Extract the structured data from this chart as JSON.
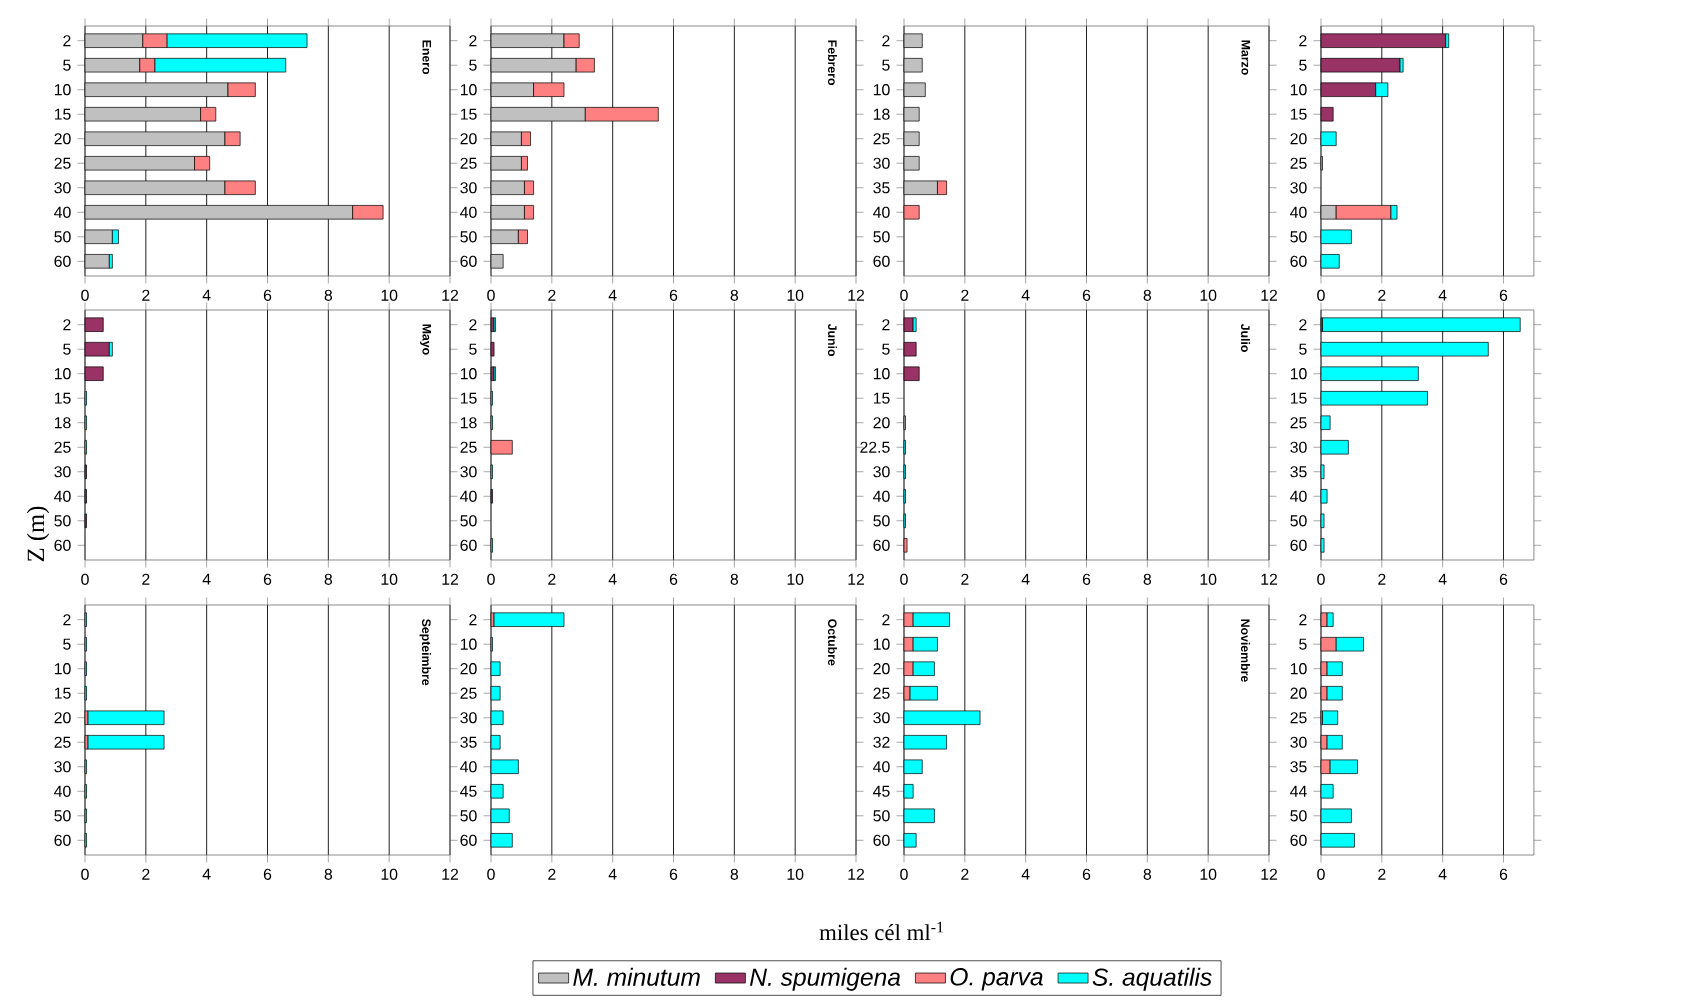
{
  "chart_data": [
    {
      "type": "bar",
      "orientation": "horizontal",
      "stacked": true,
      "title": "Enero",
      "grid": "x",
      "xlim": [
        0,
        12
      ],
      "xticks": [
        0,
        2,
        4,
        6,
        8,
        10,
        12
      ],
      "categories": [
        "2",
        "5",
        "10",
        "15",
        "20",
        "25",
        "30",
        "40",
        "50",
        "60"
      ],
      "series": [
        {
          "color": "#c0c0c0",
          "values": [
            1.9,
            1.8,
            4.7,
            3.8,
            4.6,
            3.6,
            4.6,
            8.8,
            0.9,
            0.8
          ]
        },
        {
          "color": "#ff8080",
          "values": [
            0.8,
            0.5,
            0.9,
            0.5,
            0.5,
            0.5,
            1.0,
            1.0,
            null,
            null
          ]
        },
        {
          "color": "#00ffff",
          "values": [
            4.6,
            4.3,
            null,
            null,
            null,
            null,
            null,
            null,
            0.2,
            0.1
          ]
        }
      ]
    },
    {
      "type": "bar",
      "orientation": "horizontal",
      "stacked": true,
      "title": "Febrero",
      "grid": "x",
      "xlim": [
        0,
        12
      ],
      "xticks": [
        0,
        2,
        4,
        6,
        8,
        10,
        12
      ],
      "categories": [
        "2",
        "5",
        "10",
        "15",
        "20",
        "25",
        "30",
        "40",
        "50",
        "60"
      ],
      "series": [
        {
          "color": "#c0c0c0",
          "values": [
            2.4,
            2.8,
            1.4,
            3.1,
            1.0,
            1.0,
            1.1,
            1.1,
            0.9,
            0.4
          ]
        },
        {
          "color": "#ff8080",
          "values": [
            0.5,
            0.6,
            1.0,
            2.4,
            0.3,
            0.2,
            0.3,
            0.3,
            0.3,
            null
          ]
        }
      ]
    },
    {
      "type": "bar",
      "orientation": "horizontal",
      "stacked": true,
      "title": "Marzo",
      "grid": "x",
      "xlim": [
        0,
        12
      ],
      "xticks": [
        0,
        2,
        4,
        6,
        8,
        10,
        12
      ],
      "categories": [
        "2",
        "5",
        "10",
        "18",
        "25",
        "30",
        "35",
        "40",
        "50",
        "60"
      ],
      "series": [
        {
          "color": "#c0c0c0",
          "values": [
            0.6,
            0.6,
            0.7,
            0.5,
            0.5,
            0.5,
            1.1,
            null,
            null,
            null
          ]
        },
        {
          "color": "#ff8080",
          "values": [
            null,
            null,
            null,
            null,
            null,
            null,
            0.3,
            0.5,
            null,
            null
          ]
        }
      ]
    },
    {
      "type": "bar",
      "orientation": "horizontal",
      "stacked": true,
      "grid": "x",
      "legend": "bottom",
      "xlim": [
        0,
        7
      ],
      "xticks": [
        0,
        2,
        4,
        6
      ],
      "categories": [
        "2",
        "5",
        "10",
        "15",
        "20",
        "25",
        "30",
        "40",
        "50",
        "60"
      ],
      "series": [
        {
          "name": "*M. minutum*",
          "color": "#c0c0c0",
          "values": [
            null,
            null,
            null,
            null,
            null,
            0.05,
            null,
            0.5,
            null,
            null
          ]
        },
        {
          "name": "*N. spumigena*",
          "color": "#993366",
          "values": [
            4.1,
            2.6,
            1.8,
            0.4,
            null,
            null,
            null,
            null,
            null,
            null
          ]
        },
        {
          "name": "*O. parva*",
          "color": "#ff8080",
          "values": [
            null,
            null,
            null,
            null,
            null,
            null,
            null,
            1.8,
            null,
            null
          ]
        },
        {
          "name": "*S. aquatilis*",
          "color": "#00ffff",
          "values": [
            0.1,
            0.1,
            0.4,
            null,
            0.5,
            null,
            null,
            0.2,
            1.0,
            0.6
          ]
        }
      ]
    },
    {
      "type": "bar",
      "orientation": "horizontal",
      "stacked": true,
      "title": "Mayo",
      "ylabel": "Z (m)",
      "grid": "x",
      "xlim": [
        0,
        12
      ],
      "xticks": [
        0,
        2,
        4,
        6,
        8,
        10,
        12
      ],
      "categories": [
        "2",
        "5",
        "10",
        "15",
        "18",
        "25",
        "30",
        "40",
        "50",
        "60"
      ],
      "series": [
        {
          "color": "#993366",
          "values": [
            0.6,
            0.8,
            0.6,
            null,
            null,
            null,
            0.05,
            0.05,
            0.05,
            null
          ]
        },
        {
          "color": "#00ffff",
          "values": [
            null,
            0.1,
            null,
            0.05,
            0.05,
            0.05,
            null,
            null,
            null,
            null
          ]
        }
      ]
    },
    {
      "type": "bar",
      "orientation": "horizontal",
      "stacked": true,
      "title": "Junio",
      "grid": "x",
      "xlim": [
        0,
        12
      ],
      "xticks": [
        0,
        2,
        4,
        6,
        8,
        10,
        12
      ],
      "categories": [
        "2",
        "5",
        "10",
        "15",
        "18",
        "25",
        "30",
        "40",
        "50",
        "60"
      ],
      "series": [
        {
          "color": "#993366",
          "values": [
            0.1,
            0.1,
            0.1,
            null,
            null,
            null,
            null,
            0.05,
            null,
            null
          ]
        },
        {
          "color": "#ff8080",
          "values": [
            null,
            null,
            null,
            null,
            null,
            0.7,
            null,
            null,
            null,
            null
          ]
        },
        {
          "color": "#00ffff",
          "values": [
            0.05,
            null,
            0.05,
            0.05,
            0.05,
            null,
            0.05,
            null,
            null,
            0.05
          ]
        }
      ]
    },
    {
      "type": "bar",
      "orientation": "horizontal",
      "stacked": true,
      "title": "Julio",
      "grid": "x",
      "xlim": [
        0,
        12
      ],
      "xticks": [
        0,
        2,
        4,
        6,
        8,
        10,
        12
      ],
      "categories": [
        "2",
        "5",
        "10",
        "15",
        "20",
        "22.5",
        "30",
        "40",
        "50",
        "60"
      ],
      "series": [
        {
          "color": "#c0c0c0",
          "values": [
            null,
            null,
            null,
            null,
            0.05,
            null,
            null,
            null,
            null,
            null
          ]
        },
        {
          "color": "#993366",
          "values": [
            0.3,
            0.4,
            0.5,
            null,
            null,
            null,
            null,
            null,
            null,
            null
          ]
        },
        {
          "color": "#ff8080",
          "values": [
            null,
            null,
            null,
            null,
            null,
            null,
            null,
            null,
            null,
            0.1
          ]
        },
        {
          "color": "#00ffff",
          "values": [
            0.1,
            null,
            null,
            null,
            null,
            0.05,
            0.05,
            0.05,
            0.05,
            null
          ]
        }
      ]
    },
    {
      "type": "bar",
      "orientation": "horizontal",
      "stacked": true,
      "grid": "x",
      "xlim": [
        0,
        7
      ],
      "xticks": [
        0,
        2,
        4,
        6
      ],
      "categories": [
        "2",
        "5",
        "10",
        "15",
        "25",
        "30",
        "35",
        "40",
        "50",
        "60"
      ],
      "series": [
        {
          "color": "#993366",
          "values": [
            0.05,
            null,
            null,
            null,
            null,
            null,
            null,
            null,
            null,
            null
          ]
        },
        {
          "color": "#00ffff",
          "values": [
            6.5,
            5.5,
            3.2,
            3.5,
            0.3,
            0.9,
            0.1,
            0.2,
            0.1,
            0.1
          ]
        }
      ]
    },
    {
      "type": "bar",
      "orientation": "horizontal",
      "stacked": true,
      "title": "Septeimbre",
      "grid": "x",
      "xlim": [
        0,
        12
      ],
      "xticks": [
        0,
        2,
        4,
        6,
        8,
        10,
        12
      ],
      "categories": [
        "2",
        "5",
        "10",
        "15",
        "20",
        "25",
        "30",
        "40",
        "50",
        "60"
      ],
      "series": [
        {
          "color": "#ff8080",
          "values": [
            null,
            null,
            null,
            null,
            0.1,
            0.1,
            null,
            null,
            null,
            null
          ]
        },
        {
          "color": "#00ffff",
          "values": [
            0.05,
            0.05,
            0.05,
            0.05,
            2.5,
            2.5,
            0.05,
            0.05,
            0.05,
            0.05
          ]
        }
      ]
    },
    {
      "type": "bar",
      "orientation": "horizontal",
      "stacked": true,
      "title": "Octubre",
      "xlabel": "miles cél ml$^{-1}$",
      "grid": "x",
      "xlim": [
        0,
        12
      ],
      "xticks": [
        0,
        2,
        4,
        6,
        8,
        10,
        12
      ],
      "categories": [
        "2",
        "10",
        "20",
        "25",
        "30",
        "35",
        "40",
        "45",
        "50",
        "60"
      ],
      "series": [
        {
          "color": "#ff8080",
          "values": [
            0.1,
            null,
            null,
            null,
            null,
            null,
            null,
            null,
            null,
            null
          ]
        },
        {
          "color": "#00ffff",
          "values": [
            2.3,
            0.05,
            0.3,
            0.3,
            0.4,
            0.3,
            0.9,
            0.4,
            0.6,
            0.7
          ]
        }
      ]
    },
    {
      "type": "bar",
      "orientation": "horizontal",
      "stacked": true,
      "title": "Noviembre",
      "grid": "x",
      "xlim": [
        0,
        12
      ],
      "xticks": [
        0,
        2,
        4,
        6,
        8,
        10,
        12
      ],
      "categories": [
        "2",
        "10",
        "20",
        "25",
        "30",
        "32",
        "40",
        "45",
        "50",
        "60"
      ],
      "series": [
        {
          "color": "#ff8080",
          "values": [
            0.3,
            0.3,
            0.3,
            0.2,
            null,
            null,
            null,
            null,
            null,
            null
          ]
        },
        {
          "color": "#00ffff",
          "values": [
            1.2,
            0.8,
            0.7,
            0.9,
            2.5,
            1.4,
            0.6,
            0.3,
            1.0,
            0.4
          ]
        }
      ]
    },
    {
      "type": "bar",
      "orientation": "horizontal",
      "stacked": true,
      "grid": "x",
      "xlim": [
        0,
        7
      ],
      "xticks": [
        0,
        2,
        4,
        6
      ],
      "categories": [
        "2",
        "5",
        "10",
        "20",
        "25",
        "30",
        "35",
        "44",
        "50",
        "60"
      ],
      "series": [
        {
          "color": "#ff8080",
          "values": [
            0.2,
            0.5,
            0.2,
            0.2,
            0.05,
            0.2,
            0.3,
            null,
            null,
            null
          ]
        },
        {
          "color": "#00ffff",
          "values": [
            0.2,
            0.9,
            0.5,
            0.5,
            0.5,
            0.5,
            0.9,
            0.4,
            1.0,
            1.1
          ]
        }
      ]
    }
  ]
}
